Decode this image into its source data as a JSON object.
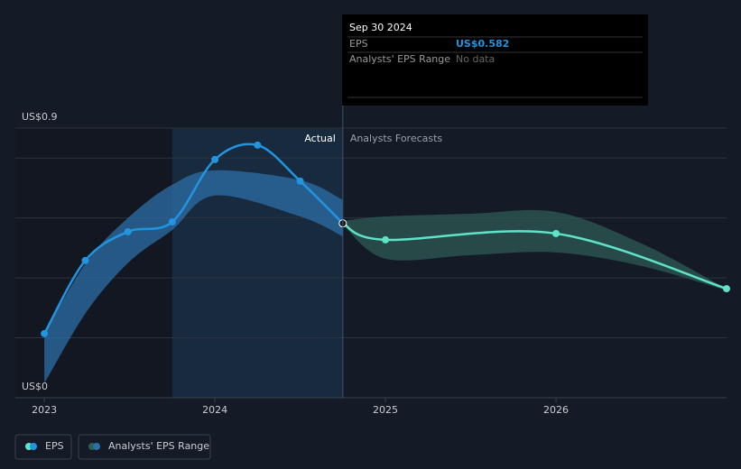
{
  "chart_data": {
    "type": "line",
    "ylim": [
      0,
      0.9
    ],
    "yticks": [
      {
        "value": 0,
        "label": "US$0"
      },
      {
        "value": 0.2,
        "label": null
      },
      {
        "value": 0.4,
        "label": null
      },
      {
        "value": 0.6,
        "label": null
      },
      {
        "value": 0.8,
        "label": null
      },
      {
        "value": 0.9,
        "label": "US$0.9"
      }
    ],
    "xlim": [
      2022.83,
      2027
    ],
    "xticks": [
      2023,
      2024,
      2025,
      2026
    ],
    "actual_label": "Actual",
    "forecast_label": "Analysts Forecasts",
    "eps": {
      "name": "EPS",
      "actual": {
        "color": "#2394df",
        "x": [
          2023,
          2023.24,
          2023.49,
          2023.75,
          2024,
          2024.25,
          2024.5,
          2024.75
        ],
        "values": [
          0.214,
          0.458,
          0.554,
          0.587,
          0.795,
          0.843,
          0.723,
          0.582
        ]
      },
      "forecast": {
        "color": "#5fe3c8",
        "x": [
          2024.75,
          2025,
          2026,
          2027
        ],
        "values": [
          0.582,
          0.527,
          0.548,
          0.364
        ]
      }
    },
    "range": {
      "name": "Analysts' EPS Range",
      "actual": {
        "color": "#2d6fa8",
        "x": [
          2023,
          2023.25,
          2023.5,
          2023.75,
          2024,
          2024.5,
          2024.75
        ],
        "upper": [
          0.214,
          0.455,
          0.605,
          0.711,
          0.759,
          0.726,
          0.66
        ],
        "lower": [
          0.048,
          0.289,
          0.455,
          0.56,
          0.675,
          0.605,
          0.539
        ]
      },
      "forecast": {
        "color": "#2f5d57",
        "x": [
          2024.75,
          2025,
          2025.5,
          2026,
          2026.5,
          2027
        ],
        "upper": [
          0.59,
          0.605,
          0.614,
          0.62,
          0.515,
          0.364
        ],
        "lower": [
          0.578,
          0.464,
          0.476,
          0.485,
          0.44,
          0.358
        ]
      }
    },
    "tooltip": {
      "date": "Sep 30 2024",
      "rows": [
        [
          "EPS",
          "US$0.582"
        ],
        [
          "Analysts' EPS Range",
          "No data"
        ]
      ]
    }
  }
}
